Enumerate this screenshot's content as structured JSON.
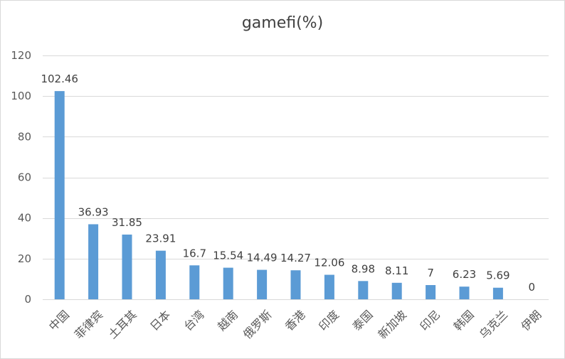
{
  "chart_data": {
    "type": "bar",
    "title": "gamefi(%)",
    "categories": [
      "中国",
      "菲律宾",
      "土耳其",
      "日本",
      "台湾",
      "越南",
      "俄罗斯",
      "香港",
      "印度",
      "泰国",
      "新加坡",
      "印尼",
      "韩国",
      "乌克兰",
      "伊朗"
    ],
    "values": [
      102.46,
      36.93,
      31.85,
      23.91,
      16.7,
      15.54,
      14.49,
      14.27,
      12.06,
      8.98,
      8.11,
      7,
      6.23,
      5.69,
      0
    ],
    "value_labels": [
      "102.46",
      "36.93",
      "31.85",
      "23.91",
      "16.7",
      "15.54",
      "14.49",
      "14.27",
      "12.06",
      "8.98",
      "8.11",
      "7",
      "6.23",
      "5.69",
      "0"
    ],
    "ylim": [
      0,
      120
    ],
    "yticks": [
      0,
      20,
      40,
      60,
      80,
      100,
      120
    ],
    "xlabel": "",
    "ylabel": "",
    "grid": true,
    "legend": "none",
    "bar_color": "#5B9BD5",
    "gridline_color": "#d9d9d9"
  }
}
